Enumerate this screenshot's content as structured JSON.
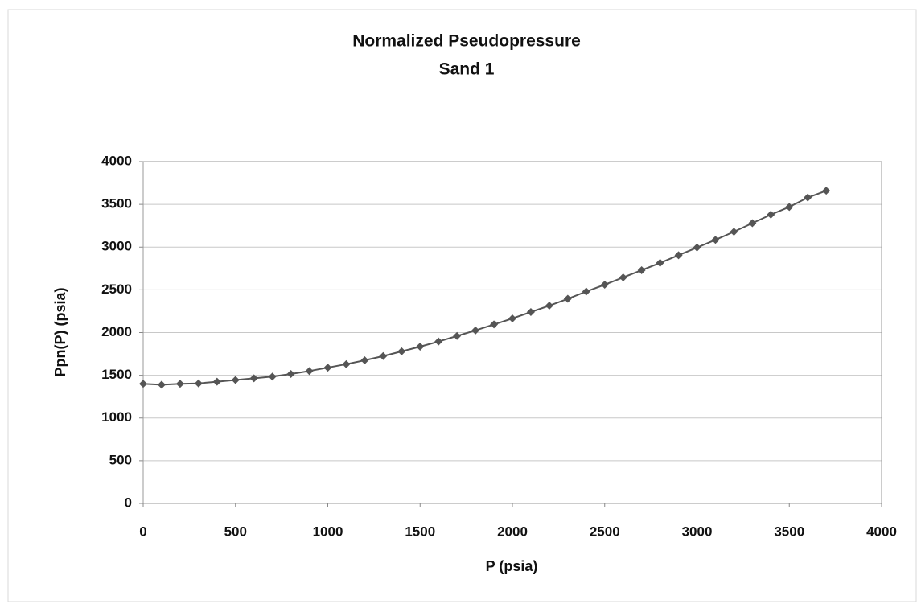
{
  "chart_data": {
    "type": "scatter",
    "title": "Normalized Pseudopressure",
    "subtitle": "Sand 1",
    "x_label": "P (psia)",
    "y_label": "Ppn(P) (psia)",
    "x": [
      0,
      100,
      200,
      300,
      400,
      500,
      600,
      700,
      800,
      900,
      1000,
      1100,
      1200,
      1300,
      1400,
      1500,
      1600,
      1700,
      1800,
      1900,
      2000,
      2100,
      2200,
      2300,
      2400,
      2500,
      2600,
      2700,
      2800,
      2900,
      3000,
      3100,
      3200,
      3300,
      3400,
      3500,
      3600,
      3700
    ],
    "values": [
      1400,
      1390,
      1400,
      1405,
      1425,
      1445,
      1465,
      1485,
      1515,
      1550,
      1590,
      1630,
      1675,
      1725,
      1780,
      1835,
      1895,
      1960,
      2025,
      2095,
      2165,
      2240,
      2315,
      2395,
      2480,
      2560,
      2645,
      2730,
      2815,
      2905,
      2995,
      3085,
      3180,
      3280,
      3380,
      3470,
      3580,
      3660
    ],
    "color": "#555555",
    "xlim": [
      0,
      4000
    ],
    "xticks": [
      0,
      500,
      1000,
      1500,
      2000,
      2500,
      3000,
      3500,
      4000
    ],
    "ylim": [
      0,
      4000
    ],
    "yticks": [
      0,
      500,
      1000,
      1500,
      2000,
      2500,
      3000,
      3500,
      4000
    ],
    "grid": true
  }
}
